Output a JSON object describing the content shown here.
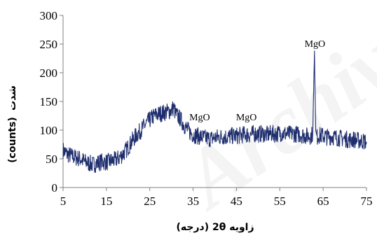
{
  "chart_data": {
    "type": "line",
    "xlabel": "زاویه 2θ (درجه)",
    "ylabel_main": "شدت",
    "ylabel_unit": "(counts)",
    "xlim": [
      5,
      75
    ],
    "ylim": [
      0,
      300
    ],
    "xticks": [
      5,
      15,
      25,
      35,
      45,
      55,
      65,
      75
    ],
    "yticks": [
      0,
      50,
      100,
      150,
      200,
      250,
      300
    ],
    "grid": false,
    "line_color": "#1f2f6e",
    "series": [
      {
        "x": [
          5,
          6,
          7,
          8,
          9,
          10,
          11,
          12,
          13,
          14,
          15,
          16,
          17,
          18,
          19,
          20,
          21,
          22,
          23,
          24,
          25,
          26,
          27,
          28,
          29,
          30,
          30.5,
          31,
          32,
          33,
          34,
          35,
          36,
          37,
          38,
          39,
          40,
          41,
          42,
          43,
          44,
          45,
          46,
          47,
          48,
          49,
          50,
          51,
          52,
          53,
          54,
          55,
          56,
          57,
          58,
          59,
          60,
          61,
          62,
          62.6,
          63,
          63.3,
          63.6,
          64,
          65,
          66,
          67,
          68,
          69,
          70,
          71,
          72,
          73,
          74,
          75
        ],
        "y": [
          65,
          58,
          55,
          52,
          50,
          45,
          42,
          40,
          43,
          45,
          44,
          46,
          48,
          52,
          60,
          70,
          82,
          92,
          100,
          110,
          118,
          125,
          128,
          130,
          132,
          134,
          140,
          128,
          120,
          108,
          98,
          92,
          90,
          88,
          86,
          85,
          87,
          88,
          89,
          88,
          90,
          90,
          91,
          93,
          92,
          94,
          93,
          94,
          92,
          94,
          93,
          95,
          94,
          93,
          94,
          93,
          92,
          90,
          90,
          93,
          238,
          92,
          88,
          91,
          90,
          88,
          89,
          87,
          86,
          85,
          83,
          84,
          82,
          81,
          80
        ]
      }
    ],
    "annotations": [
      {
        "text": "MgO",
        "x": 36.5,
        "y": 117
      },
      {
        "text": "MgO",
        "x": 47.3,
        "y": 117
      },
      {
        "text": "MgO",
        "x": 63.1,
        "y": 245
      }
    ]
  }
}
